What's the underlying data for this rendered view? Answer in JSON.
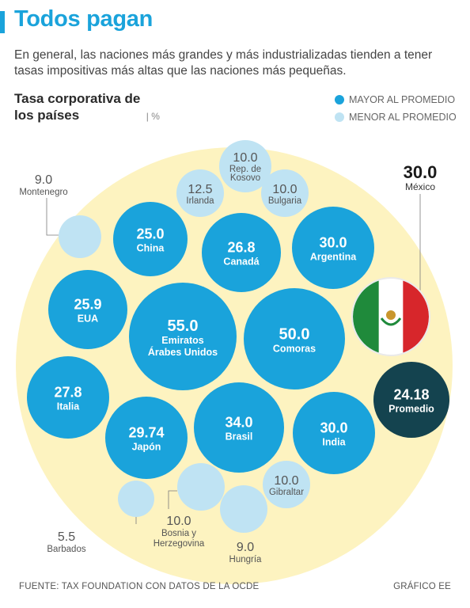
{
  "header": {
    "title": "Todos pagan",
    "subtitle": "En general, las naciones más grandes y más industrializadas tienden a tener tasas impositivas más altas que las naciones más pequeñas."
  },
  "colors": {
    "above": "#1aa3db",
    "below": "#bfe3f3",
    "promedio": "#14434f",
    "background_circle": "#fdf3c0"
  },
  "chart_data": {
    "type": "bubble",
    "title": "Tasa corporativa de los países",
    "unit": "%",
    "legend": [
      {
        "label": "MAYOR AL PROMEDIO",
        "color": "#1aa3db"
      },
      {
        "label": "MENOR AL PROMEDIO",
        "color": "#bfe3f3"
      }
    ],
    "bubbles": [
      {
        "country": "Emiratos Árabes Unidos",
        "value": 55.0,
        "value_label": "55.0",
        "group": "above"
      },
      {
        "country": "Comoras",
        "value": 50.0,
        "value_label": "50.0",
        "group": "above"
      },
      {
        "country": "Brasil",
        "value": 34.0,
        "value_label": "34.0",
        "group": "above"
      },
      {
        "country": "Argentina",
        "value": 30.0,
        "value_label": "30.0",
        "group": "above"
      },
      {
        "country": "India",
        "value": 30.0,
        "value_label": "30.0",
        "group": "above"
      },
      {
        "country": "Japón",
        "value": 29.74,
        "value_label": "29.74",
        "group": "above"
      },
      {
        "country": "Italia",
        "value": 27.8,
        "value_label": "27.8",
        "group": "above"
      },
      {
        "country": "Canadá",
        "value": 26.8,
        "value_label": "26.8",
        "group": "above"
      },
      {
        "country": "EUA",
        "value": 25.9,
        "value_label": "25.9",
        "group": "above"
      },
      {
        "country": "China",
        "value": 25.0,
        "value_label": "25.0",
        "group": "above"
      },
      {
        "country": "Rep. de Kosovo",
        "value": 10.0,
        "value_label": "10.0",
        "group": "below"
      },
      {
        "country": "Irlanda",
        "value": 12.5,
        "value_label": "12.5",
        "group": "below"
      },
      {
        "country": "Bulgaria",
        "value": 10.0,
        "value_label": "10.0",
        "group": "below"
      },
      {
        "country": "Montenegro",
        "value": 9.0,
        "value_label": "9.0",
        "group": "below"
      },
      {
        "country": "Gibraltar",
        "value": 10.0,
        "value_label": "10.0",
        "group": "below"
      },
      {
        "country": "Barbados",
        "value": 5.5,
        "value_label": "5.5",
        "group": "below"
      },
      {
        "country": "Bosnia y Herzegovina",
        "value": 10.0,
        "value_label": "10.0",
        "group": "below"
      },
      {
        "country": "Hungría",
        "value": 9.0,
        "value_label": "9.0",
        "group": "below"
      },
      {
        "country": "México",
        "value": 30.0,
        "value_label": "30.0",
        "group": "highlight"
      },
      {
        "country": "Promedio",
        "value": 24.18,
        "value_label": "24.18",
        "group": "average"
      }
    ]
  },
  "footer": {
    "source": "FUENTE: TAX FOUNDATION CON DATOS DE LA OCDE",
    "credit": "GRÁFICO EE"
  }
}
